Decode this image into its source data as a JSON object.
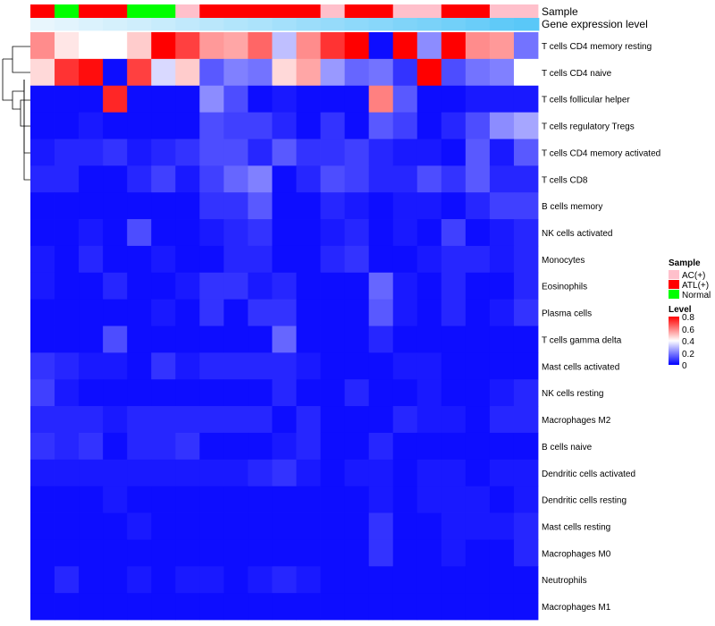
{
  "chart_data": {
    "type": "heatmap",
    "annotation_labels": {
      "sample": "Sample",
      "gene_expression": "Gene expression level"
    },
    "rows": [
      "T cells CD4 memory resting",
      "T cells CD4 naive",
      "T cells follicular helper",
      "T cells regulatory  Tregs",
      "T cells CD4 memory activated",
      "T cells CD8",
      "B cells memory",
      "NK cells activated",
      "Monocytes",
      "Eosinophils",
      "Plasma cells",
      "T cells gamma delta",
      "Mast cells activated",
      "NK cells resting",
      "Macrophages M2",
      "B cells naive",
      "Dendritic cells activated",
      "Dendritic cells resting",
      "Mast cells resting",
      "Macrophages M0",
      "Neutrophils",
      "Macrophages M1"
    ],
    "sample_groups": [
      "ATL(+)",
      "Normal",
      "ATL(+)",
      "ATL(+)",
      "Normal",
      "Normal",
      "AC(+)",
      "ATL(+)",
      "ATL(+)",
      "ATL(+)",
      "ATL(+)",
      "ATL(+)",
      "AC(+)",
      "ATL(+)",
      "ATL(+)",
      "AC(+)",
      "AC(+)",
      "ATL(+)",
      "ATL(+)",
      "AC(+)",
      "AC(+)"
    ],
    "gene_expression_values": [
      0.02,
      0.06,
      0.1,
      0.14,
      0.18,
      0.22,
      0.27,
      0.31,
      0.36,
      0.4,
      0.45,
      0.5,
      0.54,
      0.59,
      0.63,
      0.68,
      0.72,
      0.77,
      0.82,
      0.88,
      0.92
    ],
    "values": [
      [
        0.58,
        0.44,
        0.4,
        0.4,
        0.48,
        0.8,
        0.7,
        0.56,
        0.54,
        0.64,
        0.3,
        0.58,
        0.72,
        0.8,
        0.02,
        0.8,
        0.22,
        0.8,
        0.58,
        0.56,
        0.18
      ],
      [
        0.46,
        0.72,
        0.78,
        0.02,
        0.7,
        0.34,
        0.48,
        0.14,
        0.2,
        0.18,
        0.46,
        0.54,
        0.24,
        0.16,
        0.18,
        0.08,
        0.8,
        0.12,
        0.18,
        0.2,
        0.4
      ],
      [
        0.02,
        0.02,
        0.02,
        0.74,
        0.02,
        0.02,
        0.02,
        0.22,
        0.12,
        0.02,
        0.04,
        0.02,
        0.02,
        0.02,
        0.6,
        0.14,
        0.02,
        0.02,
        0.04,
        0.04,
        0.04
      ],
      [
        0.02,
        0.02,
        0.04,
        0.02,
        0.02,
        0.02,
        0.02,
        0.12,
        0.1,
        0.1,
        0.06,
        0.02,
        0.08,
        0.02,
        0.14,
        0.1,
        0.02,
        0.06,
        0.12,
        0.22,
        0.26
      ],
      [
        0.04,
        0.06,
        0.06,
        0.08,
        0.04,
        0.06,
        0.08,
        0.12,
        0.12,
        0.06,
        0.14,
        0.08,
        0.08,
        0.1,
        0.06,
        0.04,
        0.04,
        0.02,
        0.14,
        0.04,
        0.14
      ],
      [
        0.06,
        0.06,
        0.02,
        0.02,
        0.06,
        0.1,
        0.04,
        0.1,
        0.16,
        0.2,
        0.02,
        0.06,
        0.12,
        0.1,
        0.06,
        0.06,
        0.12,
        0.08,
        0.14,
        0.06,
        0.06
      ],
      [
        0.02,
        0.02,
        0.02,
        0.02,
        0.02,
        0.02,
        0.02,
        0.08,
        0.08,
        0.14,
        0.02,
        0.02,
        0.06,
        0.04,
        0.02,
        0.04,
        0.04,
        0.02,
        0.06,
        0.1,
        0.1
      ],
      [
        0.02,
        0.02,
        0.04,
        0.02,
        0.12,
        0.02,
        0.02,
        0.04,
        0.06,
        0.08,
        0.02,
        0.02,
        0.04,
        0.06,
        0.02,
        0.04,
        0.02,
        0.1,
        0.02,
        0.04,
        0.06
      ],
      [
        0.04,
        0.02,
        0.06,
        0.02,
        0.02,
        0.04,
        0.02,
        0.02,
        0.06,
        0.06,
        0.02,
        0.02,
        0.06,
        0.08,
        0.02,
        0.02,
        0.04,
        0.06,
        0.06,
        0.04,
        0.06
      ],
      [
        0.04,
        0.02,
        0.02,
        0.06,
        0.02,
        0.02,
        0.04,
        0.08,
        0.08,
        0.04,
        0.06,
        0.02,
        0.02,
        0.02,
        0.16,
        0.04,
        0.02,
        0.06,
        0.02,
        0.02,
        0.06
      ],
      [
        0.02,
        0.02,
        0.02,
        0.02,
        0.02,
        0.04,
        0.02,
        0.08,
        0.02,
        0.08,
        0.08,
        0.02,
        0.02,
        0.02,
        0.14,
        0.04,
        0.02,
        0.06,
        0.02,
        0.04,
        0.08
      ],
      [
        0.02,
        0.02,
        0.02,
        0.12,
        0.02,
        0.02,
        0.02,
        0.02,
        0.02,
        0.02,
        0.16,
        0.02,
        0.02,
        0.02,
        0.06,
        0.02,
        0.02,
        0.02,
        0.02,
        0.02,
        0.02
      ],
      [
        0.08,
        0.06,
        0.04,
        0.04,
        0.02,
        0.08,
        0.04,
        0.06,
        0.06,
        0.06,
        0.06,
        0.04,
        0.02,
        0.02,
        0.02,
        0.04,
        0.04,
        0.02,
        0.02,
        0.02,
        0.02
      ],
      [
        0.1,
        0.04,
        0.02,
        0.02,
        0.02,
        0.02,
        0.02,
        0.02,
        0.02,
        0.02,
        0.06,
        0.02,
        0.02,
        0.06,
        0.02,
        0.02,
        0.04,
        0.02,
        0.02,
        0.04,
        0.06
      ],
      [
        0.06,
        0.06,
        0.06,
        0.04,
        0.06,
        0.06,
        0.06,
        0.06,
        0.06,
        0.06,
        0.02,
        0.06,
        0.02,
        0.02,
        0.02,
        0.06,
        0.04,
        0.04,
        0.02,
        0.06,
        0.06
      ],
      [
        0.08,
        0.06,
        0.08,
        0.02,
        0.06,
        0.06,
        0.08,
        0.02,
        0.02,
        0.02,
        0.04,
        0.06,
        0.02,
        0.02,
        0.06,
        0.02,
        0.02,
        0.02,
        0.02,
        0.02,
        0.02
      ],
      [
        0.04,
        0.04,
        0.04,
        0.04,
        0.04,
        0.04,
        0.04,
        0.04,
        0.04,
        0.06,
        0.08,
        0.04,
        0.02,
        0.04,
        0.04,
        0.02,
        0.04,
        0.04,
        0.02,
        0.04,
        0.04
      ],
      [
        0.02,
        0.02,
        0.02,
        0.04,
        0.02,
        0.02,
        0.02,
        0.02,
        0.02,
        0.02,
        0.02,
        0.02,
        0.02,
        0.02,
        0.04,
        0.02,
        0.04,
        0.04,
        0.04,
        0.02,
        0.04
      ],
      [
        0.02,
        0.02,
        0.02,
        0.02,
        0.04,
        0.02,
        0.02,
        0.02,
        0.02,
        0.02,
        0.02,
        0.02,
        0.02,
        0.02,
        0.08,
        0.02,
        0.02,
        0.04,
        0.04,
        0.04,
        0.06
      ],
      [
        0.02,
        0.02,
        0.02,
        0.02,
        0.02,
        0.02,
        0.02,
        0.02,
        0.02,
        0.02,
        0.02,
        0.02,
        0.02,
        0.02,
        0.08,
        0.02,
        0.02,
        0.04,
        0.02,
        0.02,
        0.06
      ],
      [
        0.02,
        0.06,
        0.02,
        0.02,
        0.04,
        0.02,
        0.04,
        0.04,
        0.02,
        0.04,
        0.06,
        0.04,
        0.02,
        0.02,
        0.02,
        0.02,
        0.02,
        0.02,
        0.02,
        0.02,
        0.02
      ],
      [
        0.02,
        0.02,
        0.02,
        0.02,
        0.02,
        0.02,
        0.02,
        0.02,
        0.02,
        0.02,
        0.02,
        0.02,
        0.02,
        0.02,
        0.02,
        0.02,
        0.02,
        0.02,
        0.02,
        0.02,
        0.02
      ]
    ],
    "legend_sample": {
      "title": "Sample",
      "entries": [
        {
          "label": "AC(+)",
          "color": "#ffc0cb"
        },
        {
          "label": "ATL(+)",
          "color": "#ff0000"
        },
        {
          "label": "Normal",
          "color": "#00ff00"
        }
      ]
    },
    "legend_level": {
      "title": "Level",
      "ticks": [
        "0.8",
        "0.6",
        "0.4",
        "0.2",
        "0"
      ],
      "range": [
        0,
        0.8
      ]
    },
    "colors": {
      "low": "#0000ff",
      "mid": "#ffffff",
      "high": "#ff0000",
      "gene_low": "#e8f6fd",
      "gene_high": "#5ac8f8"
    }
  }
}
